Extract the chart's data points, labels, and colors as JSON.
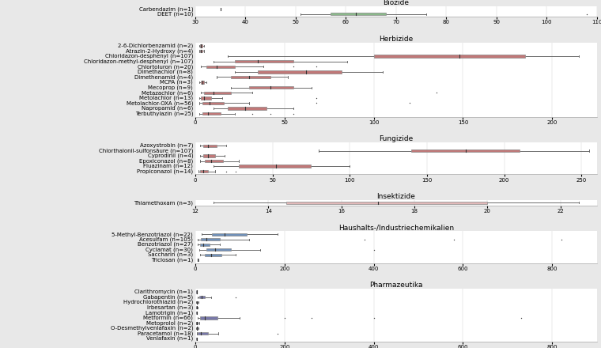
{
  "title_fontsize": 6.5,
  "label_fontsize": 5.0,
  "tick_fontsize": 5.0,
  "sections": [
    {
      "title": "Biozide",
      "color": "#8ab88a",
      "xlim": [
        30,
        110
      ],
      "xticks": [
        30,
        40,
        50,
        60,
        70,
        80,
        90,
        100,
        110
      ],
      "items": [
        {
          "label": "Carbendazim (n=1)",
          "whislo": 35,
          "q1": 35,
          "med": 35,
          "q3": 35,
          "whishi": 35,
          "fliers": []
        },
        {
          "label": "DEET (n=10)",
          "whislo": 51,
          "q1": 57,
          "med": 62,
          "q3": 68,
          "whishi": 76,
          "fliers": [
            108
          ]
        }
      ]
    },
    {
      "title": "Herbizide",
      "color": "#c07878",
      "xlim": [
        0,
        225
      ],
      "xticks": [
        0,
        50,
        100,
        150,
        200
      ],
      "items": [
        {
          "label": "2-6-Dichlorbenzamid (n=2)",
          "whislo": 2,
          "q1": 2.5,
          "med": 3,
          "q3": 4,
          "whishi": 5,
          "fliers": []
        },
        {
          "label": "Atrazin-2-Hydroxy (n=4)",
          "whislo": 2,
          "q1": 2.5,
          "med": 3,
          "q3": 4,
          "whishi": 5,
          "fliers": []
        },
        {
          "label": "Chloridazon-desphenyl (n=107)",
          "whislo": 18,
          "q1": 100,
          "med": 148,
          "q3": 185,
          "whishi": 215,
          "fliers": []
        },
        {
          "label": "Chloridazon-methyl-desphenyl (n=107)",
          "whislo": 10,
          "q1": 22,
          "med": 35,
          "q3": 55,
          "whishi": 85,
          "fliers": []
        },
        {
          "label": "Chlortoluron (n=20)",
          "whislo": 3,
          "q1": 6,
          "med": 12,
          "q3": 22,
          "whishi": 38,
          "fliers": [
            55,
            68
          ]
        },
        {
          "label": "Dimethachlor (n=8)",
          "whislo": 22,
          "q1": 35,
          "med": 62,
          "q3": 82,
          "whishi": 105,
          "fliers": []
        },
        {
          "label": "Dimethenamid (n=4)",
          "whislo": 12,
          "q1": 20,
          "med": 30,
          "q3": 42,
          "whishi": 52,
          "fliers": []
        },
        {
          "label": "MCPA (n=3)",
          "whislo": 2,
          "q1": 3,
          "med": 4,
          "q3": 5,
          "whishi": 6,
          "fliers": []
        },
        {
          "label": "Mecoprop (n=9)",
          "whislo": 20,
          "q1": 30,
          "med": 42,
          "q3": 55,
          "whishi": 65,
          "fliers": []
        },
        {
          "label": "Metazachlor (n=6)",
          "whislo": 3,
          "q1": 5,
          "med": 10,
          "q3": 20,
          "whishi": 32,
          "fliers": [
            135
          ]
        },
        {
          "label": "Metolachlor (n=13)",
          "whislo": 2,
          "q1": 3,
          "med": 5,
          "q3": 9,
          "whishi": 15,
          "fliers": [
            68
          ]
        },
        {
          "label": "Metolachlor-OXA (n=56)",
          "whislo": 2,
          "q1": 4,
          "med": 8,
          "q3": 16,
          "whishi": 30,
          "fliers": [
            68,
            120
          ]
        },
        {
          "label": "Napropamid (n=6)",
          "whislo": 10,
          "q1": 18,
          "med": 28,
          "q3": 40,
          "whishi": 55,
          "fliers": []
        },
        {
          "label": "Terbuthylazin (n=25)",
          "whislo": 2,
          "q1": 4,
          "med": 7,
          "q3": 14,
          "whishi": 22,
          "fliers": [
            32,
            42,
            55
          ]
        }
      ]
    },
    {
      "title": "Fungizide",
      "color": "#c07878",
      "xlim": [
        0,
        260
      ],
      "xticks": [
        0,
        50,
        100,
        150,
        200,
        250
      ],
      "items": [
        {
          "label": "Azoxystrobin (n=7)",
          "whislo": 3,
          "q1": 5,
          "med": 8,
          "q3": 14,
          "whishi": 20,
          "fliers": []
        },
        {
          "label": "Chlorthalonil-sulfonsäure (n=107)",
          "whislo": 80,
          "q1": 140,
          "med": 175,
          "q3": 210,
          "whishi": 255,
          "fliers": []
        },
        {
          "label": "Cyprodinil (n=4)",
          "whislo": 3,
          "q1": 5,
          "med": 8,
          "q3": 13,
          "whishi": 19,
          "fliers": []
        },
        {
          "label": "Epoxiconazol (n=8)",
          "whislo": 3,
          "q1": 6,
          "med": 10,
          "q3": 18,
          "whishi": 28,
          "fliers": []
        },
        {
          "label": "Fluazinam (n=12)",
          "whislo": 12,
          "q1": 28,
          "med": 52,
          "q3": 75,
          "whishi": 100,
          "fliers": []
        },
        {
          "label": "Propiconazol (n=14)",
          "whislo": 2,
          "q1": 3,
          "med": 5,
          "q3": 8,
          "whishi": 13,
          "fliers": [
            20,
            26
          ]
        }
      ]
    },
    {
      "title": "Insektizide",
      "color": "#e0b8b8",
      "xlim": [
        12,
        23
      ],
      "xticks": [
        12,
        14,
        16,
        18,
        20,
        22
      ],
      "items": [
        {
          "label": "Thiamethoxam (n=3)",
          "whislo": 12.5,
          "q1": 14.5,
          "med": 17,
          "q3": 20,
          "whishi": 22.5,
          "fliers": []
        }
      ]
    },
    {
      "title": "Haushalts-/Industriechemikalien",
      "color": "#7090b8",
      "xlim": [
        0,
        900
      ],
      "xticks": [
        0,
        200,
        400,
        600,
        800
      ],
      "items": [
        {
          "label": "5-Methyl-Benzotriazol (n=22)",
          "whislo": 15,
          "q1": 38,
          "med": 65,
          "q3": 115,
          "whishi": 185,
          "fliers": []
        },
        {
          "label": "Acesulfam (n=105)",
          "whislo": 5,
          "q1": 12,
          "med": 25,
          "q3": 55,
          "whishi": 120,
          "fliers": [
            380,
            580,
            820
          ]
        },
        {
          "label": "Benzotriazol (n=27)",
          "whislo": 5,
          "q1": 10,
          "med": 18,
          "q3": 32,
          "whishi": 55,
          "fliers": []
        },
        {
          "label": "Cyclamat (n=30)",
          "whislo": 8,
          "q1": 25,
          "med": 45,
          "q3": 80,
          "whishi": 145,
          "fliers": [
            400
          ]
        },
        {
          "label": "Saccharin (n=3)",
          "whislo": 10,
          "q1": 22,
          "med": 35,
          "q3": 58,
          "whishi": 90,
          "fliers": []
        },
        {
          "label": "Triclosan (n=1)",
          "whislo": 5,
          "q1": 5.5,
          "med": 6,
          "q3": 6.5,
          "whishi": 7,
          "fliers": []
        }
      ]
    },
    {
      "title": "Pharmazeutika",
      "color": "#7878a8",
      "xlim": [
        0,
        900
      ],
      "xticks": [
        0,
        200,
        400,
        600,
        800
      ],
      "items": [
        {
          "label": "Clarithromycin (n=1)",
          "whislo": 2,
          "q1": 2.5,
          "med": 3,
          "q3": 3.5,
          "whishi": 4,
          "fliers": []
        },
        {
          "label": "Gabapentin (n=5)",
          "whislo": 5,
          "q1": 8,
          "med": 14,
          "q3": 22,
          "whishi": 35,
          "fliers": [
            90
          ]
        },
        {
          "label": "Hydrochlorothiazid (n=2)",
          "whislo": 2,
          "q1": 3,
          "med": 4,
          "q3": 5,
          "whishi": 7,
          "fliers": []
        },
        {
          "label": "Irbesartan (n=3)",
          "whislo": 2,
          "q1": 2.5,
          "med": 3,
          "q3": 4,
          "whishi": 6,
          "fliers": []
        },
        {
          "label": "Lamotrigin (n=1)",
          "whislo": 2,
          "q1": 2.5,
          "med": 3,
          "q3": 3.5,
          "whishi": 4,
          "fliers": []
        },
        {
          "label": "Metformin (n=66)",
          "whislo": 5,
          "q1": 10,
          "med": 22,
          "q3": 50,
          "whishi": 100,
          "fliers": [
            200,
            260,
            400,
            730
          ]
        },
        {
          "label": "Metoprolol (n=2)",
          "whislo": 2,
          "q1": 3,
          "med": 4,
          "q3": 5,
          "whishi": 8,
          "fliers": []
        },
        {
          "label": "O-Desmethylvenlafaxin (n=2)",
          "whislo": 2,
          "q1": 3,
          "med": 4,
          "q3": 5,
          "whishi": 7,
          "fliers": []
        },
        {
          "label": "Paracetamol (n=18)",
          "whislo": 3,
          "q1": 5,
          "med": 12,
          "q3": 28,
          "whishi": 52,
          "fliers": [
            185
          ]
        },
        {
          "label": "Venlafaxin (n=1)",
          "whislo": 2,
          "q1": 2.5,
          "med": 3,
          "q3": 3.5,
          "whishi": 4,
          "fliers": []
        }
      ]
    }
  ],
  "fig_background": "#e8e8e8",
  "panel_background": "#ffffff"
}
